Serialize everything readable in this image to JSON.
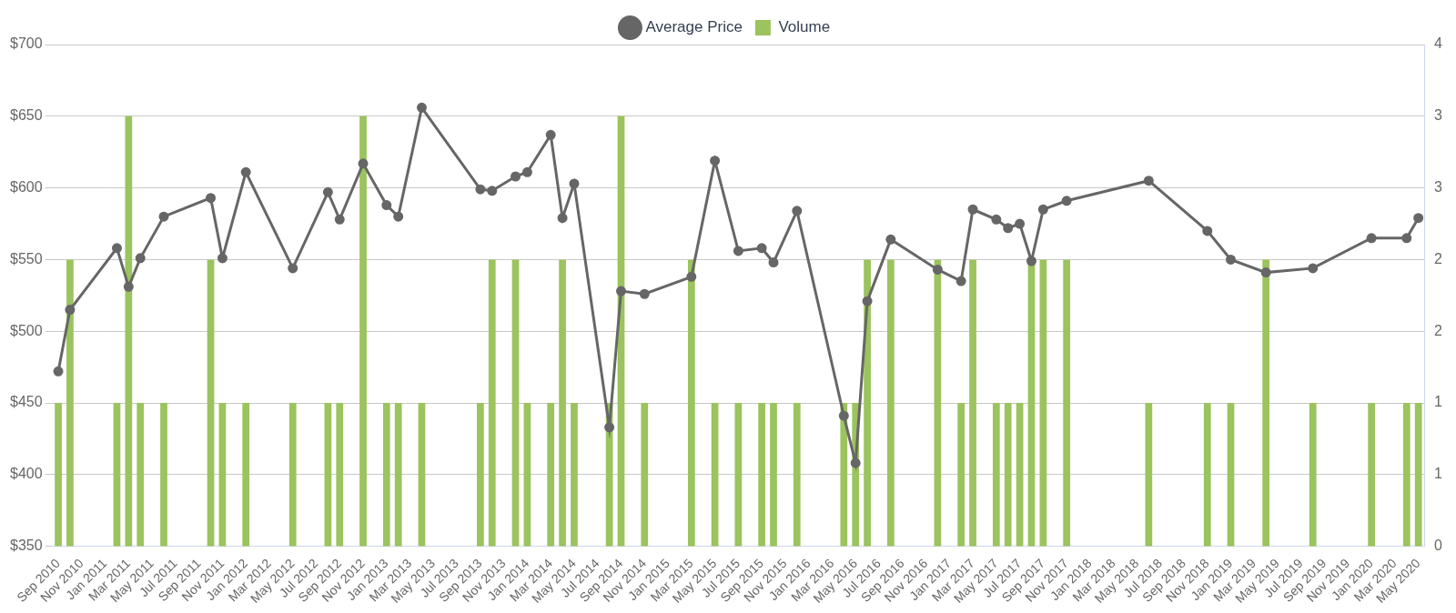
{
  "chart_data": {
    "type": "line",
    "categories": [
      "Sep 2010",
      null,
      "Nov 2010",
      null,
      "Jan 2011",
      null,
      "Mar 2011",
      null,
      "May 2011",
      null,
      "Jul 2011",
      null,
      "Sep 2011",
      null,
      "Nov 2011",
      null,
      "Jan 2012",
      null,
      "Mar 2012",
      null,
      "May 2012",
      null,
      "Jul 2012",
      null,
      "Sep 2012",
      null,
      "Nov 2012",
      null,
      "Jan 2013",
      null,
      "Mar 2013",
      null,
      "May 2013",
      null,
      "Jul 2013",
      null,
      "Sep 2013",
      null,
      "Nov 2013",
      null,
      "Jan 2014",
      null,
      "Mar 2014",
      null,
      "May 2014",
      null,
      "Jul 2014",
      null,
      "Sep 2014",
      null,
      "Nov 2014",
      null,
      "Jan 2015",
      null,
      "Mar 2015",
      null,
      "May 2015",
      null,
      "Jul 2015",
      null,
      "Sep 2015",
      null,
      "Nov 2015",
      null,
      "Jan 2016",
      null,
      "Mar 2016",
      null,
      "May 2016",
      null,
      "Jul 2016",
      null,
      "Sep 2016",
      null,
      "Nov 2016",
      null,
      "Jan 2017",
      null,
      "Mar 2017",
      null,
      "May 2017",
      null,
      "Jul 2017",
      null,
      "Sep 2017",
      null,
      "Nov 2017",
      null,
      "Jan 2018",
      null,
      "Mar 2018",
      null,
      "May 2018",
      null,
      "Jul 2018",
      null,
      "Sep 2018",
      null,
      "Nov 2018",
      null,
      "Jan 2019",
      null,
      "Mar 2019",
      null,
      "May 2019",
      null,
      "Jul 2019",
      null,
      "Sep 2019",
      null,
      "Nov 2019",
      null,
      "Jan 2020",
      null,
      "Mar 2020",
      null,
      "May 2020"
    ],
    "series": [
      {
        "name": "Average Price",
        "type": "line",
        "color": "#666666",
        "marker": "circle",
        "line_style": "solid",
        "values": [
          472,
          515,
          null,
          null,
          null,
          558,
          531,
          551,
          null,
          580,
          null,
          null,
          null,
          593,
          551,
          null,
          611,
          null,
          null,
          null,
          544,
          null,
          null,
          597,
          578,
          null,
          617,
          null,
          588,
          580,
          null,
          656,
          null,
          null,
          null,
          null,
          599,
          598,
          null,
          608,
          611,
          null,
          637,
          579,
          603,
          null,
          null,
          433,
          528,
          null,
          526,
          null,
          null,
          null,
          538,
          null,
          619,
          null,
          556,
          null,
          558,
          548,
          null,
          584,
          null,
          null,
          null,
          441,
          408,
          521,
          null,
          564,
          null,
          null,
          null,
          543,
          null,
          535,
          585,
          null,
          578,
          572,
          575,
          549,
          585,
          null,
          591,
          null,
          null,
          null,
          null,
          null,
          null,
          605,
          null,
          null,
          null,
          null,
          570,
          null,
          550,
          null,
          null,
          541,
          null,
          null,
          null,
          544,
          null,
          null,
          null,
          null,
          565,
          null,
          null,
          565,
          579
        ]
      },
      {
        "name": "Volume",
        "type": "bar",
        "color": "#9bc35e",
        "axis": "y2",
        "values": [
          1,
          2,
          null,
          null,
          null,
          1,
          3,
          1,
          null,
          1,
          null,
          null,
          null,
          2,
          1,
          null,
          1,
          null,
          null,
          null,
          1,
          null,
          null,
          1,
          1,
          null,
          3,
          null,
          1,
          1,
          null,
          1,
          null,
          null,
          null,
          null,
          1,
          2,
          null,
          2,
          1,
          null,
          1,
          2,
          1,
          null,
          null,
          1,
          3,
          null,
          1,
          null,
          null,
          null,
          2,
          null,
          1,
          null,
          1,
          null,
          1,
          1,
          null,
          1,
          null,
          null,
          null,
          1,
          1,
          2,
          null,
          2,
          null,
          null,
          null,
          2,
          null,
          1,
          2,
          null,
          1,
          1,
          1,
          2,
          2,
          null,
          2,
          null,
          null,
          null,
          null,
          null,
          null,
          1,
          null,
          null,
          null,
          null,
          1,
          null,
          1,
          null,
          null,
          2,
          null,
          null,
          null,
          1,
          null,
          null,
          null,
          null,
          1,
          null,
          null,
          1,
          1
        ]
      }
    ],
    "ylim": [
      350,
      700
    ],
    "yticks": [
      {
        "value": 350,
        "label": "$350"
      },
      {
        "value": 400,
        "label": "$400"
      },
      {
        "value": 450,
        "label": "$450"
      },
      {
        "value": 500,
        "label": "$500"
      },
      {
        "value": 550,
        "label": "$550"
      },
      {
        "value": 600,
        "label": "$600"
      },
      {
        "value": 650,
        "label": "$650"
      },
      {
        "value": 700,
        "label": "$700"
      }
    ],
    "y2lim": [
      0,
      3.5
    ],
    "y2ticks": [
      0,
      {
        "value": 0.5,
        "label": "1"
      },
      1,
      {
        "value": 1.5,
        "label": "2"
      },
      2,
      {
        "value": 2.5,
        "label": "3"
      },
      3,
      {
        "value": 3.5,
        "label": "4"
      }
    ],
    "grid": true,
    "legend": "top"
  }
}
